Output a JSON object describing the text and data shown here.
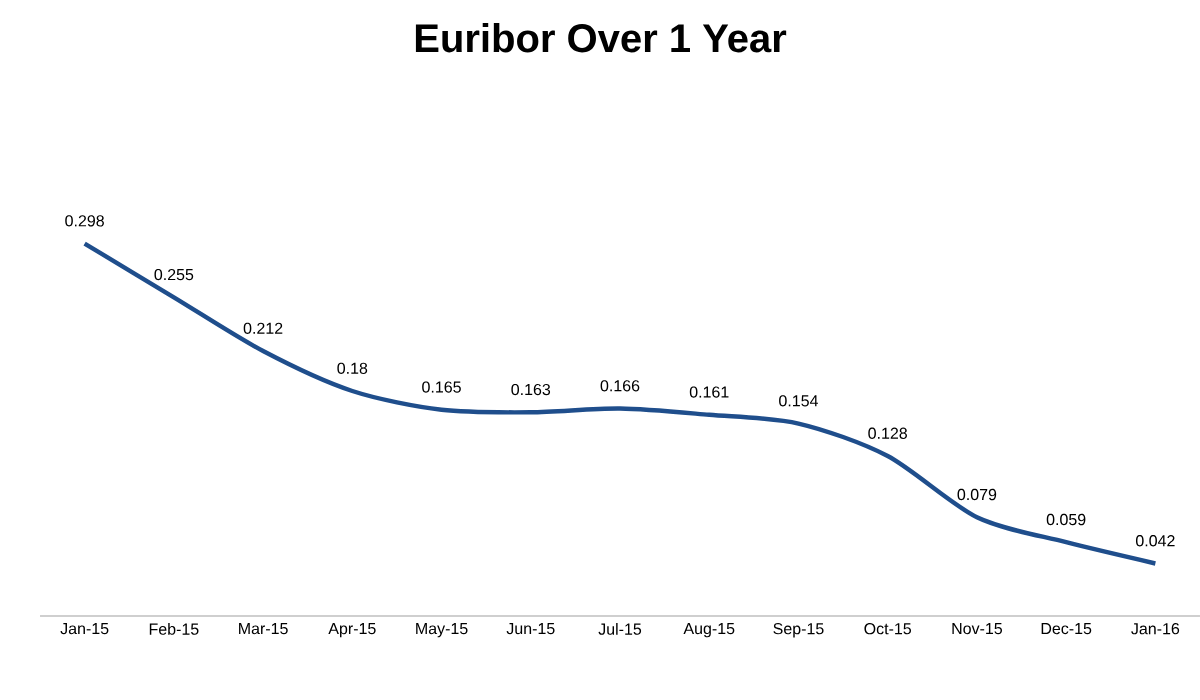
{
  "chart_data": {
    "type": "line",
    "title": "Euribor Over 1 Year",
    "categories": [
      "Jan-15",
      "Feb-15",
      "Mar-15",
      "Apr-15",
      "May-15",
      "Jun-15",
      "Jul-15",
      "Aug-15",
      "Sep-15",
      "Oct-15",
      "Nov-15",
      "Dec-15",
      "Jan-16"
    ],
    "series": [
      {
        "color": "#1f4e8c",
        "values": [
          0.298,
          0.255,
          0.212,
          0.18,
          0.165,
          0.163,
          0.166,
          0.161,
          0.154,
          0.128,
          0.079,
          0.059,
          0.042
        ]
      }
    ],
    "data_labels": true,
    "marker": "none",
    "line_style": "solid"
  }
}
